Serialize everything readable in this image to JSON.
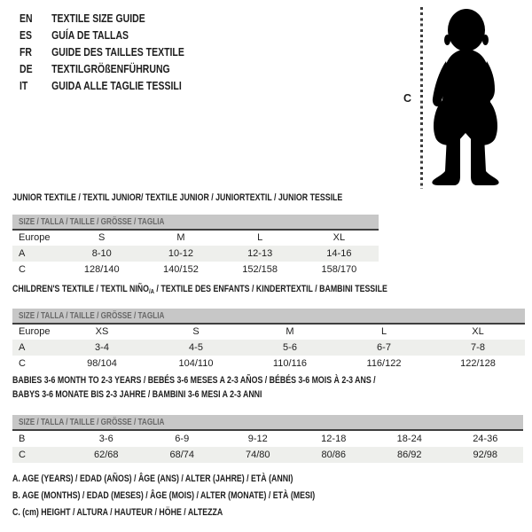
{
  "languages": [
    {
      "code": "EN",
      "title": "TEXTILE SIZE GUIDE"
    },
    {
      "code": "ES",
      "title": "GUÍA DE TALLAS"
    },
    {
      "code": "FR",
      "title": "GUIDE DES TAILLES TEXTILE"
    },
    {
      "code": "DE",
      "title": "TEXTILGRÖßENFÜHRUNG"
    },
    {
      "code": "IT",
      "title": "GUIDA ALLE TAGLIE TESSILI"
    }
  ],
  "figure": {
    "icon": "baby-silhouette-icon",
    "height_label": "C"
  },
  "sections": [
    {
      "heading_lines": [
        [
          {
            "t": "JUNIOR TEXTILE / TEXTIL JUNIOR/ TEXTILE JUNIOR / JUNIORTEXTIL / JUNIOR TESSILE"
          }
        ]
      ],
      "size_bar": "SIZE / TALLA / TAILLE / GRÖSSE / TAGLIA",
      "columns": [
        "Europe",
        "S",
        "M",
        "L",
        "XL"
      ],
      "rows": [
        {
          "label": "A",
          "values": [
            "8-10",
            "10-12",
            "12-13",
            "14-16"
          ],
          "shaded": true
        },
        {
          "label": "C",
          "values": [
            "128/140",
            "140/152",
            "152/158",
            "158/170"
          ],
          "shaded": false
        }
      ]
    },
    {
      "heading_lines": [
        [
          {
            "t": "CHILDREN'S TEXTILE / TEXTIL NIÑO"
          },
          {
            "t": "/A",
            "sub": true
          },
          {
            "t": " / TEXTILE DES ENFANTS / KINDERTEXTIL / BAMBINI TESSILE"
          }
        ]
      ],
      "size_bar": "SIZE / TALLA / TAILLE / GRÖSSE / TAGLIA",
      "columns": [
        "Europe",
        "XS",
        "S",
        "M",
        "L",
        "XL"
      ],
      "rows": [
        {
          "label": "A",
          "values": [
            "3-4",
            "4-5",
            "5-6",
            "6-7",
            "7-8"
          ],
          "shaded": true
        },
        {
          "label": "C",
          "values": [
            "98/104",
            "104/110",
            "110/116",
            "116/122",
            "122/128"
          ],
          "shaded": false
        }
      ]
    },
    {
      "heading_lines": [
        [
          {
            "t": "BABIES 3-6 MONTH TO 2-3 YEARS / BEBÉS 3-6 MESES A 2-3 AÑOS / BÉBÉS 3-6 MOIS À 2-3 ANS /"
          }
        ],
        [
          {
            "t": "BABYS 3-6 MONATE BIS 2-3 JAHRE / BAMBINI 3-6 MESI A 2-3 ANNI"
          }
        ]
      ],
      "size_bar": "SIZE / TALLA / TAILLE / GRÖSSE / TAGLIA",
      "columns": null,
      "rows": [
        {
          "label": "B",
          "values": [
            "3-6",
            "6-9",
            "9-12",
            "12-18",
            "18-24",
            "24-36"
          ],
          "shaded": false
        },
        {
          "label": "C",
          "values": [
            "62/68",
            "68/74",
            "74/80",
            "80/86",
            "86/92",
            "92/98"
          ],
          "shaded": true
        }
      ]
    }
  ],
  "notes": [
    "A. AGE (YEARS) / EDAD (AÑOS) / ÂGE (ANS) / ALTER (JAHRE) / ETÀ (ANNI)",
    "B. AGE (MONTHS) / EDAD (MESES) / ÂGE (MOIS) / ALTER (MONATE) / ETÀ (MESI)",
    "C. (cm) HEIGHT / ALTURA / HAUTEUR / HÖHE / ALTEZZA"
  ],
  "colors": {
    "background": "#ffffff",
    "text": "#1d1d1d",
    "size_bar_bg": "#c7c7c7",
    "size_bar_text": "#686868",
    "size_bar_rule": "#3f3f3f",
    "shaded_row": "#eeefec",
    "silhouette": "#000000"
  }
}
